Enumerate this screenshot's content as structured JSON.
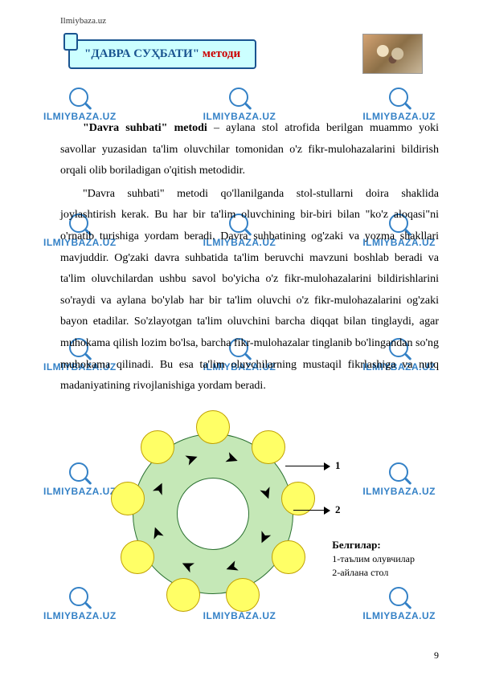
{
  "site_header": "Ilmiybaza.uz",
  "banner": {
    "quoted": "\"ДАВРА СУҲБАТИ\"",
    "tail": " методи"
  },
  "watermark_text": "ILMIYBAZA.UZ",
  "paragraphs": {
    "p1_lead": "\"Davra suhbati\" metodi",
    "p1_rest": " – aylana stol atrofida berilgan muammo yoki savollar yuzasidan ta'lim oluvchilar tomonidan o'z fikr-mulohazalarini bildirish orqali olib boriladigan o'qitish metodidir.",
    "p2": "\"Davra suhbati\" metodi qo'llanilganda stol-stullarni doira shaklida joylashtirish kerak. Bu har bir ta'lim oluvchining bir-biri bilan \"ko'z aloqasi\"ni o'rnatib turishiga yordam beradi. Davra suhbatining og'zaki va yozma shakllari mavjuddir. Og'zaki davra suhbatida ta'lim beruvchi mavzuni boshlab beradi va ta'lim oluvchilardan ushbu savol bo'yicha o'z fikr-mulohazalarini bildirishlarini so'raydi va aylana bo'ylab har bir ta'lim oluvchi o'z fikr-mulohazalarini og'zaki bayon etadilar. So'zlayotgan ta'lim oluvchini barcha diqqat bilan tinglaydi, agar muhokama qilish lozim bo'lsa, barcha fikr-mulohazalar tinglanib bo'lingandan so'ng muhokama qilinadi. Bu esa ta'lim oluvchilarning mustaqil fikrlashiga va nutq madaniyatining rivojlanishiga yordam beradi."
  },
  "diagram": {
    "label1": "1",
    "label2": "2",
    "legend_title": "Белгилар:",
    "legend_1": "1-таълим олувчилар",
    "legend_2": "2-айлана стол"
  },
  "page_number": "9",
  "colors": {
    "banner_bg": "#ccffff",
    "banner_border": "#1a5490",
    "banner_quoted": "#1a5490",
    "banner_tail": "#cc0000",
    "watermark": "#2a7bc4",
    "ring_fill": "#c5e8b7",
    "ring_border": "#2a7030",
    "petal_fill": "#ffff66",
    "petal_border": "#c0a000"
  },
  "petal_angles": [
    0,
    40,
    80,
    120,
    160,
    200,
    240,
    280,
    320
  ],
  "ring_arrows": [
    20,
    70,
    115,
    160,
    205,
    250,
    295,
    340
  ]
}
